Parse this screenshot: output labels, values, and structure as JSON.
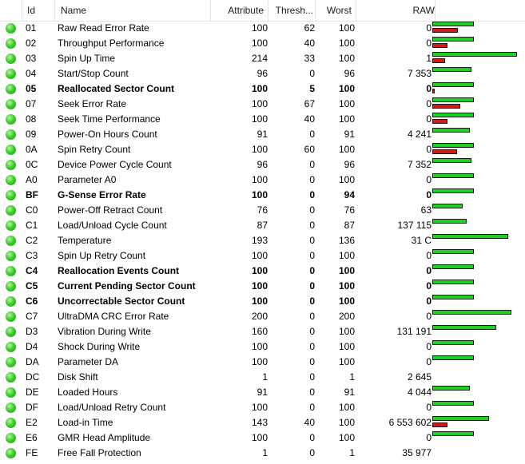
{
  "columns": {
    "id": "Id",
    "name": "Name",
    "attribute": "Attribute",
    "threshold": "Thresh...",
    "worst": "Worst",
    "raw": "RAW"
  },
  "colors": {
    "status": "#3ecf2c",
    "bar_good": "#20d020",
    "bar_bad": "#d01a1a"
  },
  "rows": [
    {
      "id": "01",
      "name": "Raw Read Error Rate",
      "attribute": "100",
      "threshold": "62",
      "worst": "100",
      "raw": "0",
      "bold": false,
      "green": 0.49,
      "red": 0.3
    },
    {
      "id": "02",
      "name": "Throughput Performance",
      "attribute": "100",
      "threshold": "40",
      "worst": "100",
      "raw": "0",
      "bold": false,
      "green": 0.49,
      "red": 0.18
    },
    {
      "id": "03",
      "name": "Spin Up Time",
      "attribute": "214",
      "threshold": "33",
      "worst": "100",
      "raw": "1",
      "bold": false,
      "green": 1.0,
      "red": 0.15
    },
    {
      "id": "04",
      "name": "Start/Stop Count",
      "attribute": "96",
      "threshold": "0",
      "worst": "96",
      "raw": "7 353",
      "bold": false,
      "green": 0.46,
      "red": 0
    },
    {
      "id": "05",
      "name": "Reallocated Sector Count",
      "attribute": "100",
      "threshold": "5",
      "worst": "100",
      "raw": "0",
      "bold": true,
      "green": 0.49,
      "red": 0.03
    },
    {
      "id": "07",
      "name": "Seek Error Rate",
      "attribute": "100",
      "threshold": "67",
      "worst": "100",
      "raw": "0",
      "bold": false,
      "green": 0.49,
      "red": 0.33
    },
    {
      "id": "08",
      "name": "Seek Time Performance",
      "attribute": "100",
      "threshold": "40",
      "worst": "100",
      "raw": "0",
      "bold": false,
      "green": 0.49,
      "red": 0.18
    },
    {
      "id": "09",
      "name": "Power-On Hours Count",
      "attribute": "91",
      "threshold": "0",
      "worst": "91",
      "raw": "4 241",
      "bold": false,
      "green": 0.44,
      "red": 0
    },
    {
      "id": "0A",
      "name": "Spin Retry Count",
      "attribute": "100",
      "threshold": "60",
      "worst": "100",
      "raw": "0",
      "bold": false,
      "green": 0.49,
      "red": 0.29
    },
    {
      "id": "0C",
      "name": "Device Power Cycle Count",
      "attribute": "96",
      "threshold": "0",
      "worst": "96",
      "raw": "7 352",
      "bold": false,
      "green": 0.46,
      "red": 0
    },
    {
      "id": "A0",
      "name": "Parameter A0",
      "attribute": "100",
      "threshold": "0",
      "worst": "100",
      "raw": "0",
      "bold": false,
      "green": 0.49,
      "red": 0
    },
    {
      "id": "BF",
      "name": "G-Sense Error Rate",
      "attribute": "100",
      "threshold": "0",
      "worst": "94",
      "raw": "0",
      "bold": true,
      "green": 0.49,
      "red": 0
    },
    {
      "id": "C0",
      "name": "Power-Off Retract Count",
      "attribute": "76",
      "threshold": "0",
      "worst": "76",
      "raw": "63",
      "bold": false,
      "green": 0.36,
      "red": 0
    },
    {
      "id": "C1",
      "name": "Load/Unload Cycle Count",
      "attribute": "87",
      "threshold": "0",
      "worst": "87",
      "raw": "137 115",
      "bold": false,
      "green": 0.41,
      "red": 0
    },
    {
      "id": "C2",
      "name": "Temperature",
      "attribute": "193",
      "threshold": "0",
      "worst": "136",
      "raw": "31 C",
      "bold": false,
      "green": 0.9,
      "red": 0
    },
    {
      "id": "C3",
      "name": "Spin Up Retry Count",
      "attribute": "100",
      "threshold": "0",
      "worst": "100",
      "raw": "0",
      "bold": false,
      "green": 0.49,
      "red": 0
    },
    {
      "id": "C4",
      "name": "Reallocation Events Count",
      "attribute": "100",
      "threshold": "0",
      "worst": "100",
      "raw": "0",
      "bold": true,
      "green": 0.49,
      "red": 0
    },
    {
      "id": "C5",
      "name": "Current Pending Sector Count",
      "attribute": "100",
      "threshold": "0",
      "worst": "100",
      "raw": "0",
      "bold": true,
      "green": 0.49,
      "red": 0
    },
    {
      "id": "C6",
      "name": "Uncorrectable Sector Count",
      "attribute": "100",
      "threshold": "0",
      "worst": "100",
      "raw": "0",
      "bold": true,
      "green": 0.49,
      "red": 0
    },
    {
      "id": "C7",
      "name": "UltraDMA CRC Error Rate",
      "attribute": "200",
      "threshold": "0",
      "worst": "200",
      "raw": "0",
      "bold": false,
      "green": 0.93,
      "red": 0
    },
    {
      "id": "D3",
      "name": "Vibration During Write",
      "attribute": "160",
      "threshold": "0",
      "worst": "100",
      "raw": "131 191",
      "bold": false,
      "green": 0.75,
      "red": 0
    },
    {
      "id": "D4",
      "name": "Shock During Write",
      "attribute": "100",
      "threshold": "0",
      "worst": "100",
      "raw": "0",
      "bold": false,
      "green": 0.49,
      "red": 0
    },
    {
      "id": "DA",
      "name": "Parameter DA",
      "attribute": "100",
      "threshold": "0",
      "worst": "100",
      "raw": "0",
      "bold": false,
      "green": 0.49,
      "red": 0
    },
    {
      "id": "DC",
      "name": "Disk Shift",
      "attribute": "1",
      "threshold": "0",
      "worst": "1",
      "raw": "2 645",
      "bold": false,
      "green": 0,
      "red": 0
    },
    {
      "id": "DE",
      "name": "Loaded Hours",
      "attribute": "91",
      "threshold": "0",
      "worst": "91",
      "raw": "4 044",
      "bold": false,
      "green": 0.44,
      "red": 0
    },
    {
      "id": "DF",
      "name": "Load/Unload Retry Count",
      "attribute": "100",
      "threshold": "0",
      "worst": "100",
      "raw": "0",
      "bold": false,
      "green": 0.49,
      "red": 0
    },
    {
      "id": "E2",
      "name": "Load-in Time",
      "attribute": "143",
      "threshold": "40",
      "worst": "100",
      "raw": "6 553 602",
      "bold": false,
      "green": 0.67,
      "red": 0.18
    },
    {
      "id": "E6",
      "name": "GMR Head Amplitude",
      "attribute": "100",
      "threshold": "0",
      "worst": "100",
      "raw": "0",
      "bold": false,
      "green": 0.49,
      "red": 0
    },
    {
      "id": "FE",
      "name": "Free Fall Protection",
      "attribute": "1",
      "threshold": "0",
      "worst": "1",
      "raw": "35 977",
      "bold": false,
      "green": 0,
      "red": 0
    }
  ]
}
